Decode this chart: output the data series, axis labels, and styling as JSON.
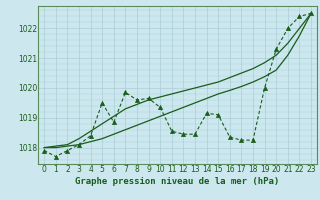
{
  "xlabel": "Graphe pression niveau de la mer (hPa)",
  "bg_color": "#cce8ee",
  "grid_color": "#aacdd6",
  "line_color": "#1a5c1a",
  "spine_color": "#5a8a5a",
  "x_values": [
    0,
    1,
    2,
    3,
    4,
    5,
    6,
    7,
    8,
    9,
    10,
    11,
    12,
    13,
    14,
    15,
    16,
    17,
    18,
    19,
    20,
    21,
    22,
    23
  ],
  "y_dotted": [
    1017.9,
    1017.7,
    1017.9,
    1018.1,
    1018.4,
    1019.5,
    1018.85,
    1019.85,
    1019.6,
    1019.65,
    1019.35,
    1018.55,
    1018.45,
    1018.45,
    1019.15,
    1019.1,
    1018.35,
    1018.25,
    1018.25,
    1020.0,
    1021.3,
    1022.0,
    1022.4,
    1022.5
  ],
  "y_line1": [
    1018.0,
    1018.05,
    1018.1,
    1018.3,
    1018.55,
    1018.8,
    1019.05,
    1019.3,
    1019.45,
    1019.6,
    1019.7,
    1019.8,
    1019.9,
    1020.0,
    1020.1,
    1020.2,
    1020.35,
    1020.5,
    1020.65,
    1020.85,
    1021.1,
    1021.5,
    1022.0,
    1022.5
  ],
  "y_line2": [
    1018.0,
    1018.0,
    1018.05,
    1018.1,
    1018.2,
    1018.3,
    1018.45,
    1018.6,
    1018.75,
    1018.9,
    1019.05,
    1019.2,
    1019.35,
    1019.5,
    1019.65,
    1019.8,
    1019.92,
    1020.05,
    1020.2,
    1020.38,
    1020.6,
    1021.1,
    1021.75,
    1022.5
  ],
  "ylim_min": 1017.45,
  "ylim_max": 1022.75,
  "yticks": [
    1018,
    1019,
    1020,
    1021,
    1022
  ],
  "xticks": [
    0,
    1,
    2,
    3,
    4,
    5,
    6,
    7,
    8,
    9,
    10,
    11,
    12,
    13,
    14,
    15,
    16,
    17,
    18,
    19,
    20,
    21,
    22,
    23
  ],
  "xlabel_fontsize": 6.5,
  "tick_fontsize": 5.5,
  "marker": "^",
  "marker_size": 3.0,
  "linewidth_dotted": 0.8,
  "linewidth_solid": 0.9
}
